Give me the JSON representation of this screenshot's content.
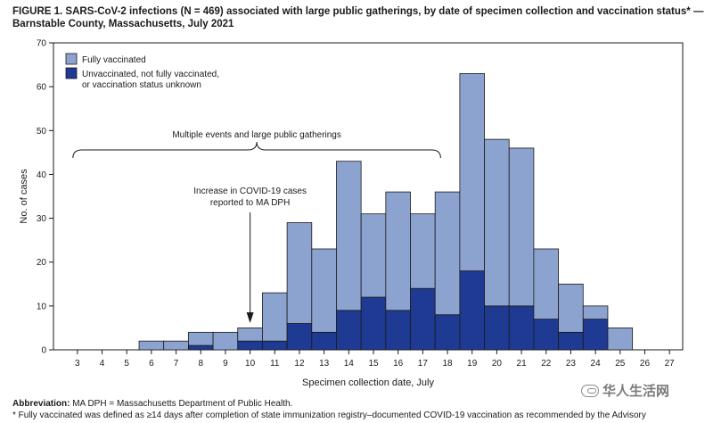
{
  "title_text": "FIGURE 1. SARS-CoV-2 infections (N = 469) associated with large public gatherings, by date of specimen collection and vaccination status* — Barnstable County, Massachusetts, July 2021",
  "colors": {
    "fully_vaccinated": "#8da3cf",
    "unvaccinated": "#1f3a93",
    "stroke": "#1a1a1a"
  },
  "chart_data": {
    "type": "bar",
    "stacked": true,
    "title": "SARS-CoV-2 infections (N = 469) associated with large public gatherings, by date of specimen collection and vaccination status",
    "xlabel": "Specimen collection date, July",
    "ylabel": "No. of cases",
    "ylim": [
      0,
      70
    ],
    "yticks": [
      0,
      10,
      20,
      30,
      40,
      50,
      60,
      70
    ],
    "categories": [
      "3",
      "4",
      "5",
      "6",
      "7",
      "8",
      "9",
      "10",
      "11",
      "12",
      "13",
      "14",
      "15",
      "16",
      "17",
      "18",
      "19",
      "20",
      "21",
      "22",
      "23",
      "24",
      "25",
      "26",
      "27"
    ],
    "series": [
      {
        "name": "Unvaccinated, not fully vaccinated, or vaccination status unknown",
        "color_key": "unvaccinated",
        "values": [
          0,
          0,
          0,
          0,
          0,
          1,
          0,
          2,
          2,
          6,
          4,
          9,
          12,
          9,
          14,
          8,
          18,
          10,
          10,
          7,
          4,
          7,
          0,
          0,
          0
        ]
      },
      {
        "name": "Fully vaccinated",
        "color_key": "fully_vaccinated",
        "values": [
          0,
          0,
          0,
          2,
          2,
          3,
          4,
          3,
          11,
          23,
          19,
          34,
          19,
          27,
          17,
          28,
          45,
          38,
          36,
          16,
          11,
          3,
          5,
          0,
          0
        ]
      }
    ],
    "legend": [
      {
        "label": "Fully vaccinated",
        "color_key": "fully_vaccinated"
      },
      {
        "label_lines": [
          "Unvaccinated, not fully vaccinated,",
          "or vaccination status unknown"
        ],
        "color_key": "unvaccinated"
      }
    ],
    "annotations": {
      "brace_label": "Multiple events and large public gatherings",
      "brace_range": [
        "3",
        "17"
      ],
      "arrow_label_lines": [
        "Increase in COVID-19 cases",
        "reported to MA DPH"
      ],
      "arrow_category": "10"
    }
  },
  "footnotes": {
    "abbrev_label": "Abbreviation:",
    "abbrev_text": " MA DPH = Massachusetts Department of Public Health.",
    "note": "* Fully vaccinated was defined as ≥14 days after completion of state immunization registry–documented COVID-19 vaccination as recommended by the Advisory"
  },
  "watermark": "华人生活网"
}
